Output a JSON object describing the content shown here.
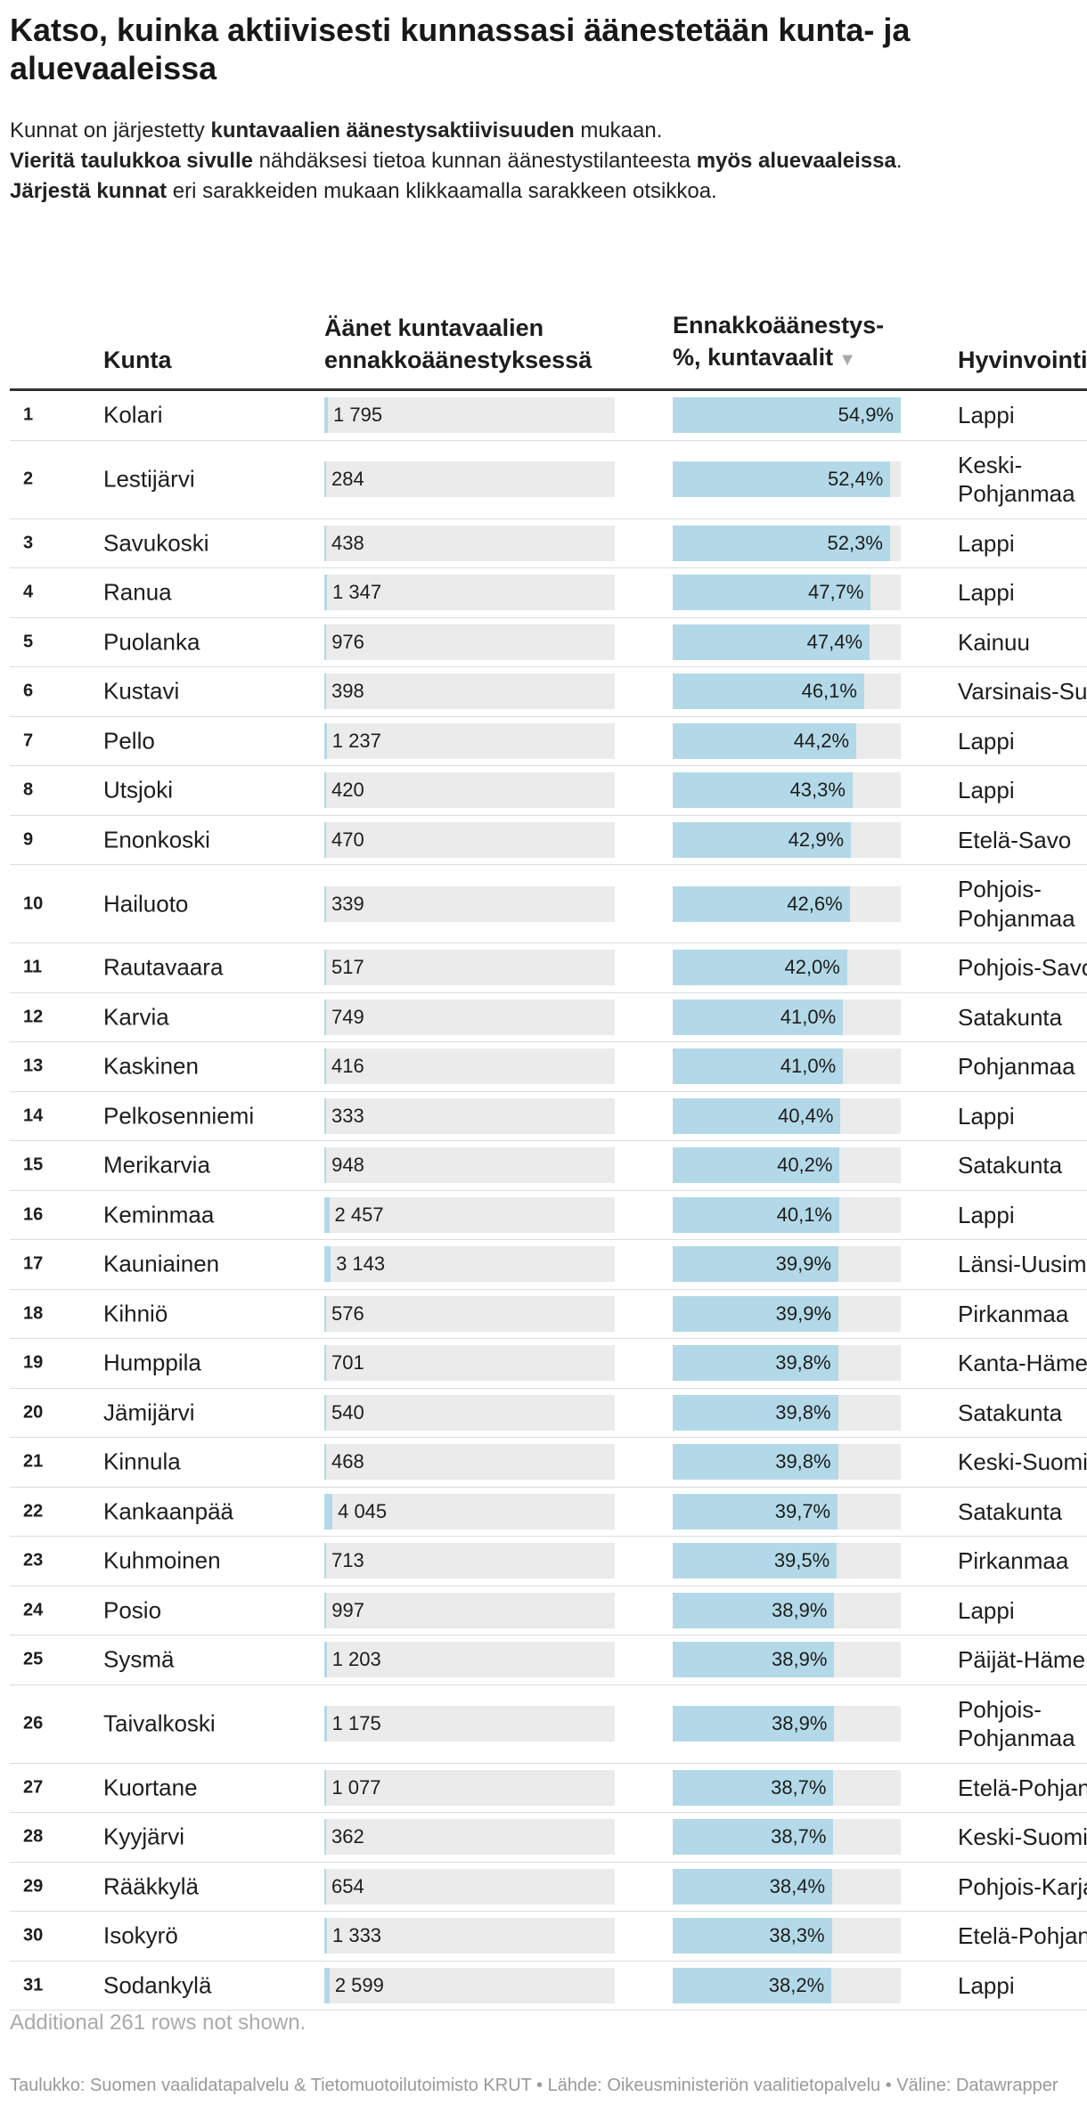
{
  "header": {
    "title": "Katso, kuinka aktiivisesti kunnassasi äänestetään kunta- ja aluevaaleissa",
    "subtitle": [
      [
        {
          "text": "Kunnat on järjestetty ",
          "bold": false
        },
        {
          "text": "kuntavaalien äänestysaktiivisuuden",
          "bold": true
        },
        {
          "text": " mukaan.",
          "bold": false
        }
      ],
      [
        {
          "text": "Vieritä taulukkoa sivulle",
          "bold": true
        },
        {
          "text": " nähdäksesi tietoa kunnan äänestystilanteesta ",
          "bold": false
        },
        {
          "text": "myös aluevaaleissa",
          "bold": true
        },
        {
          "text": ".",
          "bold": false
        }
      ],
      [
        {
          "text": "Järjestä kunnat",
          "bold": true
        },
        {
          "text": " eri sarakkeiden mukaan klikkaamalla sarakkeen otsikkoa.",
          "bold": false
        }
      ]
    ]
  },
  "table": {
    "columns": {
      "name": "Kunta",
      "votes": "Äänet kuntavaalien ennakkoäänestyksessä",
      "pct": "Ennakkoäänestys-%, kuntavaalit",
      "region": "Hyvinvointialue"
    },
    "votes_xlim": [
      0,
      145000
    ],
    "pct_xlim": [
      0,
      54.9
    ],
    "bar_color": "#b3d9e8",
    "rows": [
      {
        "rank": 1,
        "name": "Kolari",
        "votes": {
          "value": 1795,
          "label": "1 795"
        },
        "pct": {
          "value": 54.9,
          "label": "54,9%"
        },
        "region": "Lappi"
      },
      {
        "rank": 2,
        "name": "Lestijärvi",
        "votes": {
          "value": 284,
          "label": "284"
        },
        "pct": {
          "value": 52.4,
          "label": "52,4%"
        },
        "region": "Keski-Pohjanmaa"
      },
      {
        "rank": 3,
        "name": "Savukoski",
        "votes": {
          "value": 438,
          "label": "438"
        },
        "pct": {
          "value": 52.3,
          "label": "52,3%"
        },
        "region": "Lappi"
      },
      {
        "rank": 4,
        "name": "Ranua",
        "votes": {
          "value": 1347,
          "label": "1 347"
        },
        "pct": {
          "value": 47.7,
          "label": "47,7%"
        },
        "region": "Lappi"
      },
      {
        "rank": 5,
        "name": "Puolanka",
        "votes": {
          "value": 976,
          "label": "976"
        },
        "pct": {
          "value": 47.4,
          "label": "47,4%"
        },
        "region": "Kainuu"
      },
      {
        "rank": 6,
        "name": "Kustavi",
        "votes": {
          "value": 398,
          "label": "398"
        },
        "pct": {
          "value": 46.1,
          "label": "46,1%"
        },
        "region": "Varsinais-Suomi"
      },
      {
        "rank": 7,
        "name": "Pello",
        "votes": {
          "value": 1237,
          "label": "1 237"
        },
        "pct": {
          "value": 44.2,
          "label": "44,2%"
        },
        "region": "Lappi"
      },
      {
        "rank": 8,
        "name": "Utsjoki",
        "votes": {
          "value": 420,
          "label": "420"
        },
        "pct": {
          "value": 43.3,
          "label": "43,3%"
        },
        "region": "Lappi"
      },
      {
        "rank": 9,
        "name": "Enonkoski",
        "votes": {
          "value": 470,
          "label": "470"
        },
        "pct": {
          "value": 42.9,
          "label": "42,9%"
        },
        "region": "Etelä-Savo"
      },
      {
        "rank": 10,
        "name": "Hailuoto",
        "votes": {
          "value": 339,
          "label": "339"
        },
        "pct": {
          "value": 42.6,
          "label": "42,6%"
        },
        "region": "Pohjois-Pohjanmaa"
      },
      {
        "rank": 11,
        "name": "Rautavaara",
        "votes": {
          "value": 517,
          "label": "517"
        },
        "pct": {
          "value": 42.0,
          "label": "42,0%"
        },
        "region": "Pohjois-Savo"
      },
      {
        "rank": 12,
        "name": "Karvia",
        "votes": {
          "value": 749,
          "label": "749"
        },
        "pct": {
          "value": 41.0,
          "label": "41,0%"
        },
        "region": "Satakunta"
      },
      {
        "rank": 13,
        "name": "Kaskinen",
        "votes": {
          "value": 416,
          "label": "416"
        },
        "pct": {
          "value": 41.0,
          "label": "41,0%"
        },
        "region": "Pohjanmaa"
      },
      {
        "rank": 14,
        "name": "Pelkosenniemi",
        "votes": {
          "value": 333,
          "label": "333"
        },
        "pct": {
          "value": 40.4,
          "label": "40,4%"
        },
        "region": "Lappi"
      },
      {
        "rank": 15,
        "name": "Merikarvia",
        "votes": {
          "value": 948,
          "label": "948"
        },
        "pct": {
          "value": 40.2,
          "label": "40,2%"
        },
        "region": "Satakunta"
      },
      {
        "rank": 16,
        "name": "Keminmaa",
        "votes": {
          "value": 2457,
          "label": "2 457"
        },
        "pct": {
          "value": 40.1,
          "label": "40,1%"
        },
        "region": "Lappi"
      },
      {
        "rank": 17,
        "name": "Kauniainen",
        "votes": {
          "value": 3143,
          "label": "3 143"
        },
        "pct": {
          "value": 39.9,
          "label": "39,9%"
        },
        "region": "Länsi-Uusimaa"
      },
      {
        "rank": 18,
        "name": "Kihniö",
        "votes": {
          "value": 576,
          "label": "576"
        },
        "pct": {
          "value": 39.9,
          "label": "39,9%"
        },
        "region": "Pirkanmaa"
      },
      {
        "rank": 19,
        "name": "Humppila",
        "votes": {
          "value": 701,
          "label": "701"
        },
        "pct": {
          "value": 39.8,
          "label": "39,8%"
        },
        "region": "Kanta-Häme"
      },
      {
        "rank": 20,
        "name": "Jämijärvi",
        "votes": {
          "value": 540,
          "label": "540"
        },
        "pct": {
          "value": 39.8,
          "label": "39,8%"
        },
        "region": "Satakunta"
      },
      {
        "rank": 21,
        "name": "Kinnula",
        "votes": {
          "value": 468,
          "label": "468"
        },
        "pct": {
          "value": 39.8,
          "label": "39,8%"
        },
        "region": "Keski-Suomi"
      },
      {
        "rank": 22,
        "name": "Kankaanpää",
        "votes": {
          "value": 4045,
          "label": "4 045"
        },
        "pct": {
          "value": 39.7,
          "label": "39,7%"
        },
        "region": "Satakunta"
      },
      {
        "rank": 23,
        "name": "Kuhmoinen",
        "votes": {
          "value": 713,
          "label": "713"
        },
        "pct": {
          "value": 39.5,
          "label": "39,5%"
        },
        "region": "Pirkanmaa"
      },
      {
        "rank": 24,
        "name": "Posio",
        "votes": {
          "value": 997,
          "label": "997"
        },
        "pct": {
          "value": 38.9,
          "label": "38,9%"
        },
        "region": "Lappi"
      },
      {
        "rank": 25,
        "name": "Sysmä",
        "votes": {
          "value": 1203,
          "label": "1 203"
        },
        "pct": {
          "value": 38.9,
          "label": "38,9%"
        },
        "region": "Päijät-Häme"
      },
      {
        "rank": 26,
        "name": "Taivalkoski",
        "votes": {
          "value": 1175,
          "label": "1 175"
        },
        "pct": {
          "value": 38.9,
          "label": "38,9%"
        },
        "region": "Pohjois-Pohjanmaa"
      },
      {
        "rank": 27,
        "name": "Kuortane",
        "votes": {
          "value": 1077,
          "label": "1 077"
        },
        "pct": {
          "value": 38.7,
          "label": "38,7%"
        },
        "region": "Etelä-Pohjanmaa"
      },
      {
        "rank": 28,
        "name": "Kyyjärvi",
        "votes": {
          "value": 362,
          "label": "362"
        },
        "pct": {
          "value": 38.7,
          "label": "38,7%"
        },
        "region": "Keski-Suomi"
      },
      {
        "rank": 29,
        "name": "Rääkkylä",
        "votes": {
          "value": 654,
          "label": "654"
        },
        "pct": {
          "value": 38.4,
          "label": "38,4%"
        },
        "region": "Pohjois-Karjala"
      },
      {
        "rank": 30,
        "name": "Isokyrö",
        "votes": {
          "value": 1333,
          "label": "1 333"
        },
        "pct": {
          "value": 38.3,
          "label": "38,3%"
        },
        "region": "Etelä-Pohjanmaa"
      },
      {
        "rank": 31,
        "name": "Sodankylä",
        "votes": {
          "value": 2599,
          "label": "2 599"
        },
        "pct": {
          "value": 38.2,
          "label": "38,2%"
        },
        "region": "Lappi"
      }
    ],
    "more_rows": "Additional 261 rows not shown."
  },
  "footer": {
    "source": "Taulukko: Suomen vaalidatapalvelu & Tietomuotoilutoimisto KRUT • Lähde: Oikeusministeriön vaalitietopalvelu • Väline: Datawrapper"
  }
}
